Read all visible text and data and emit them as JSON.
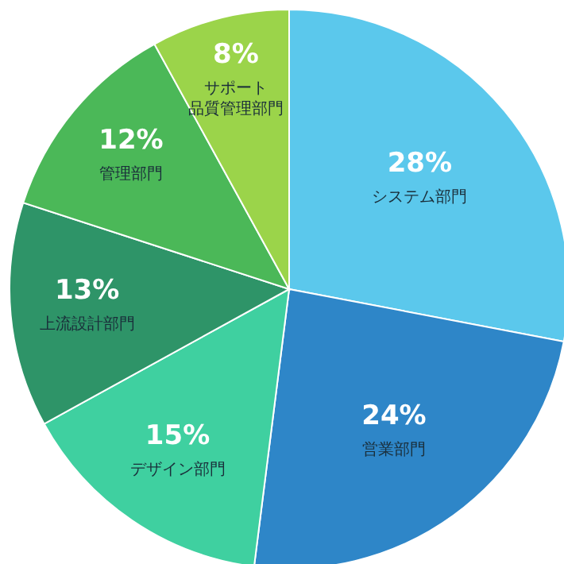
{
  "chart_data": {
    "type": "pie",
    "categories": [
      "システム部門",
      "営業部門",
      "デザイン部門",
      "上流設計部門",
      "管理部門",
      "サポート品質管理部門"
    ],
    "values": [
      28,
      24,
      15,
      13,
      12,
      8
    ],
    "value_labels": [
      "28%",
      "24%",
      "15%",
      "13%",
      "12%",
      "8%"
    ],
    "colors": [
      "#5bc8ec",
      "#2e86c8",
      "#3fd0a0",
      "#2e9468",
      "#4bb858",
      "#9bd44a"
    ]
  }
}
